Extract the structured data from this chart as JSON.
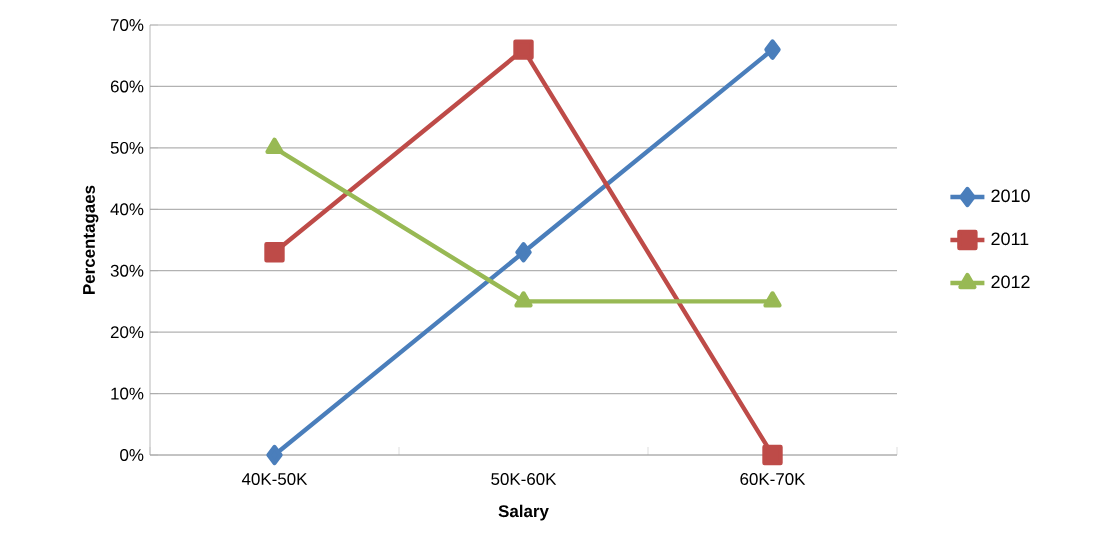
{
  "chart_data": {
    "type": "line",
    "xlabel": "Salary",
    "ylabel": "Percentagaes",
    "categories": [
      "40K-50K",
      "50K-60K",
      "60K-70K"
    ],
    "series": [
      {
        "name": "2010",
        "color": "#4a7ebb",
        "values": [
          0,
          33,
          66
        ],
        "marker": "diamond"
      },
      {
        "name": "2011",
        "color": "#be4b48",
        "values": [
          33,
          66,
          0
        ],
        "marker": "square"
      },
      {
        "name": "2012",
        "color": "#98b954",
        "values": [
          50,
          25,
          25
        ],
        "marker": "triangle"
      }
    ],
    "ylim": [
      0,
      70
    ],
    "yticks": [
      {
        "value": 0,
        "label": "0%"
      },
      {
        "value": 10,
        "label": "10%"
      },
      {
        "value": 20,
        "label": "20%"
      },
      {
        "value": 30,
        "label": "30%"
      },
      {
        "value": 40,
        "label": "40%"
      },
      {
        "value": 50,
        "label": "50%"
      },
      {
        "value": 60,
        "label": "60%"
      },
      {
        "value": 70,
        "label": "70%"
      }
    ],
    "grid": "y",
    "legend": "right",
    "line_style": "solid"
  }
}
